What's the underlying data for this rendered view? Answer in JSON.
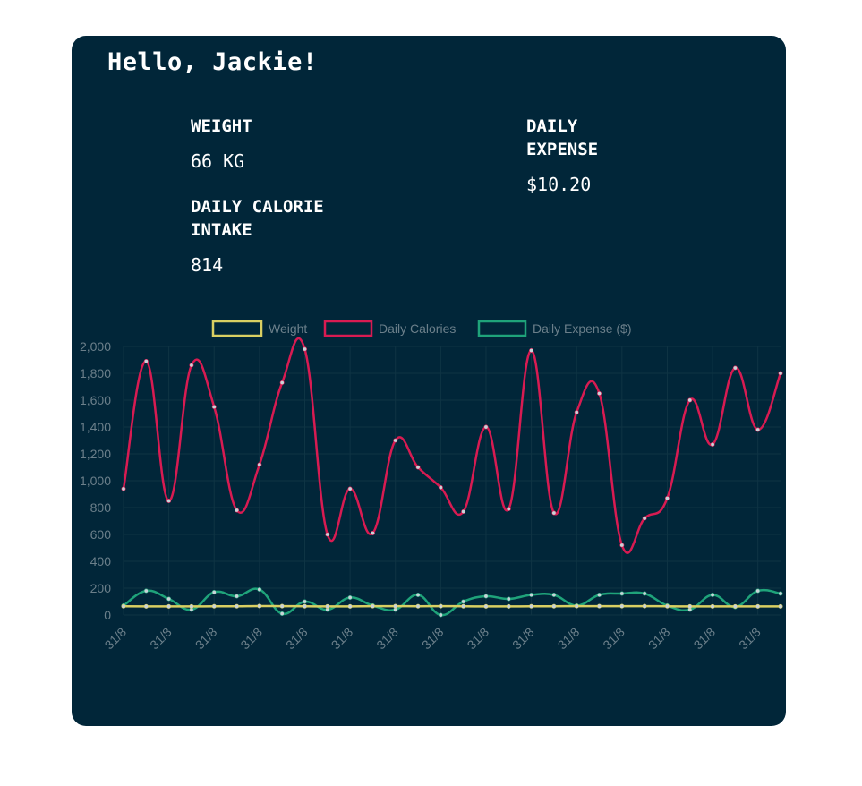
{
  "greeting": "Hello, Jackie!",
  "stats": {
    "weight": {
      "label": "WEIGHT",
      "value": "66 KG"
    },
    "calories": {
      "label": "DAILY CALORIE INTAKE",
      "value": "814"
    },
    "expense": {
      "label": "DAILY EXPENSE",
      "value": "$10.20"
    }
  },
  "colors": {
    "card_bg": "#012639",
    "weight": "#d9cf62",
    "calories": "#d81b52",
    "expense": "#1fa37a",
    "axis_text": "#6b7f8a"
  },
  "chart_data": {
    "type": "line",
    "categories": [
      "31/8",
      "31/8",
      "31/8",
      "31/8",
      "31/8",
      "31/8",
      "31/8",
      "31/8",
      "31/8",
      "31/8",
      "31/8",
      "31/8",
      "31/8",
      "31/8",
      "31/8",
      "31/8",
      "31/8",
      "31/8",
      "31/8",
      "31/8",
      "31/8",
      "31/8",
      "31/8",
      "31/8",
      "31/8",
      "31/8",
      "31/8",
      "31/8",
      "31/8",
      "31/8"
    ],
    "x_tick_labels": [
      "31/8",
      "31/8",
      "31/8",
      "31/8",
      "31/8",
      "31/8",
      "31/8",
      "31/8",
      "31/8",
      "31/8",
      "31/8",
      "31/8",
      "31/8",
      "31/8",
      "31/8"
    ],
    "ylim": [
      0,
      2000
    ],
    "yticks": [
      "0",
      "200",
      "400",
      "600",
      "800",
      "1,000",
      "1,200",
      "1,400",
      "1,600",
      "1,800",
      "2,000"
    ],
    "legend_position": "top-center",
    "series": [
      {
        "name": "Weight",
        "color": "#d9cf62",
        "values": [
          65,
          64,
          64,
          64,
          65,
          65,
          67,
          66,
          65,
          64,
          64,
          66,
          66,
          65,
          66,
          65,
          64,
          64,
          65,
          65,
          66,
          66,
          66,
          66,
          65,
          64,
          64,
          64,
          64,
          64
        ]
      },
      {
        "name": "Daily Calories",
        "color": "#d81b52",
        "values": [
          940,
          1890,
          850,
          1860,
          1550,
          780,
          1120,
          1730,
          1980,
          600,
          940,
          610,
          1300,
          1100,
          950,
          770,
          1400,
          790,
          1970,
          760,
          1510,
          1650,
          520,
          720,
          870,
          1600,
          1270,
          1840,
          1380,
          1800
        ]
      },
      {
        "name": "Daily Expense ($)",
        "color": "#1fa37a",
        "values": [
          70,
          180,
          120,
          40,
          170,
          140,
          190,
          10,
          100,
          40,
          130,
          70,
          40,
          150,
          0,
          100,
          140,
          120,
          150,
          150,
          70,
          150,
          160,
          160,
          70,
          40,
          150,
          60,
          180,
          160
        ]
      }
    ]
  }
}
